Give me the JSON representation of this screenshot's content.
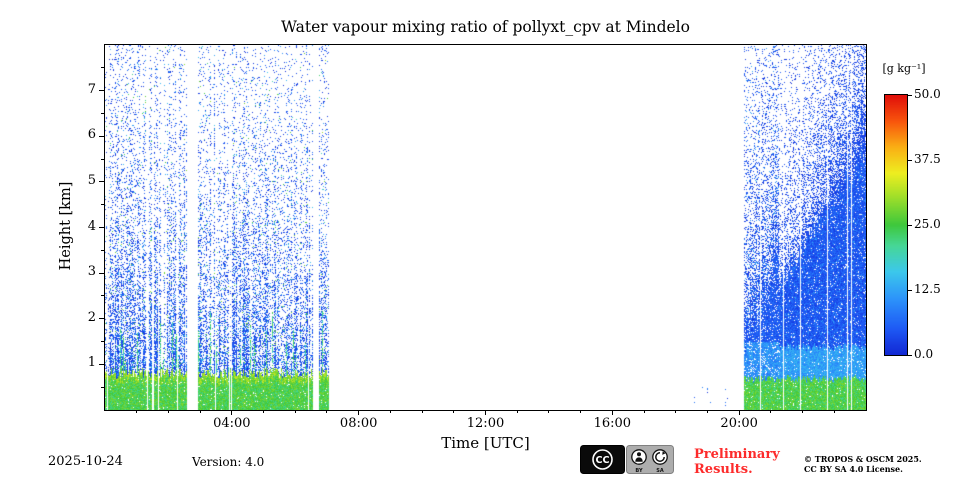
{
  "title": "Water vapour mixing ratio of pollyxt_cpv at Mindelo",
  "footer": {
    "date": "2025-10-24",
    "version": "Version: 4.0",
    "preliminary": "Preliminary Results.",
    "copyright1": "© TROPOS & OSCM 2025.",
    "copyright2": "CC BY SA 4.0 License.",
    "license_badge": {
      "cc": "CC",
      "by": "BY",
      "sa": "SA"
    }
  },
  "chart_data": {
    "type": "heatmap",
    "title": "Water vapour mixing ratio of pollyxt_cpv at Mindelo",
    "xlabel": "Time [UTC]",
    "ylabel": "Height [km]",
    "x_range_hours": [
      0,
      24
    ],
    "x_major_tick_hours": [
      4,
      8,
      12,
      16,
      20
    ],
    "x_tick_labels": [
      "04:00",
      "08:00",
      "12:00",
      "16:00",
      "20:00"
    ],
    "x_minor_tick_step_hours": 1,
    "y_range_km": [
      0,
      8
    ],
    "y_major_ticks_km": [
      1,
      2,
      3,
      4,
      5,
      6,
      7
    ],
    "y_minor_tick_step_km": 0.5,
    "colorbar": {
      "label": "[g kg⁻¹]",
      "ticks": [
        50.0,
        37.5,
        25.0,
        12.5,
        0.0
      ],
      "range": [
        0,
        50
      ]
    },
    "render": {
      "seed": 1337,
      "colormap_stops": [
        [
          0.0,
          [
            18,
            40,
            212
          ]
        ],
        [
          0.1,
          [
            30,
            90,
            245
          ]
        ],
        [
          0.22,
          [
            45,
            150,
            250
          ]
        ],
        [
          0.32,
          [
            60,
            200,
            235
          ]
        ],
        [
          0.42,
          [
            70,
            215,
            150
          ]
        ],
        [
          0.5,
          [
            62,
            200,
            60
          ]
        ],
        [
          0.62,
          [
            170,
            225,
            40
          ]
        ],
        [
          0.7,
          [
            238,
            238,
            32
          ]
        ],
        [
          0.8,
          [
            250,
            175,
            20
          ]
        ],
        [
          0.9,
          [
            248,
            85,
            12
          ]
        ],
        [
          1.0,
          [
            225,
            15,
            10
          ]
        ]
      ],
      "segments": [
        {
          "type": "lidar_speckle",
          "start_hour": 0.0,
          "end_hour": 7.05,
          "bl_top_km": 0.8,
          "gaps": [
            [
              2.6,
              2.9
            ],
            [
              6.55,
              6.75
            ]
          ]
        },
        {
          "type": "sparse_dots",
          "start_hour": 18.3,
          "end_hour": 19.9,
          "max_km": 0.5
        },
        {
          "type": "evening_dense",
          "start_hour": 20.15,
          "end_hour": 24.0,
          "bl_top_km": 0.68,
          "phase_b_start_hour": 21.25,
          "dense_top_max_km": 5.6
        }
      ]
    }
  }
}
